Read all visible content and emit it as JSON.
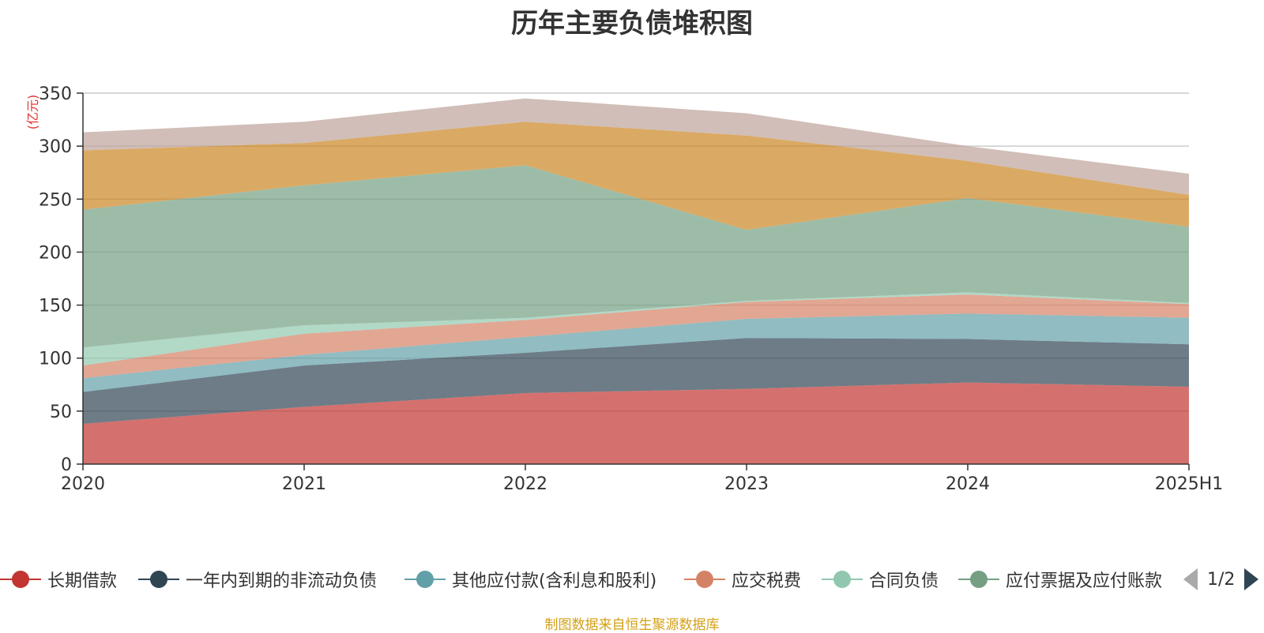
{
  "chart_data": {
    "type": "area",
    "stacked": true,
    "title": "历年主要负债堆积图",
    "ylabel": "(亿元)",
    "xlabel": "",
    "ylim": [
      0,
      350
    ],
    "yticks": [
      0,
      50,
      100,
      150,
      200,
      250,
      300,
      350
    ],
    "categories": [
      "2020",
      "2021",
      "2022",
      "2023",
      "2024",
      "2025H1"
    ],
    "grid": true,
    "legend_position": "bottom",
    "series": [
      {
        "name": "长期借款",
        "color": "#c23531",
        "values": [
          38,
          54,
          67,
          71,
          77,
          73
        ]
      },
      {
        "name": "一年内到期的非流动负债",
        "color": "#2f4554",
        "values": [
          30,
          39,
          38,
          48,
          41,
          40
        ]
      },
      {
        "name": "其他应付款(含利息和股利)",
        "color": "#61a0a8",
        "values": [
          13,
          10,
          15,
          18,
          24,
          25
        ]
      },
      {
        "name": "应交税费",
        "color": "#d48265",
        "values": [
          12,
          20,
          16,
          16,
          18,
          13
        ]
      },
      {
        "name": "合同负债",
        "color": "#91c7ae",
        "values": [
          17,
          8,
          2,
          1,
          2,
          1
        ]
      },
      {
        "name": "应付票据及应付账款",
        "color": "#749f83",
        "values": [
          130,
          132,
          144,
          67,
          89,
          72
        ]
      },
      {
        "name": "",
        "color": "#ca8622",
        "values": [
          56,
          40,
          41,
          89,
          35,
          30
        ]
      },
      {
        "name": "",
        "color": "#bda29a",
        "values": [
          17,
          20,
          22,
          21,
          14,
          20
        ]
      }
    ]
  },
  "legend": {
    "visible_items": [
      "长期借款",
      "一年内到期的非流动负债",
      "其他应付款(含利息和股利)",
      "应交税费",
      "合同负债",
      "应付票据及应付账款"
    ],
    "page_indicator": "1/2"
  },
  "source_note": "制图数据来自恒生聚源数据库"
}
